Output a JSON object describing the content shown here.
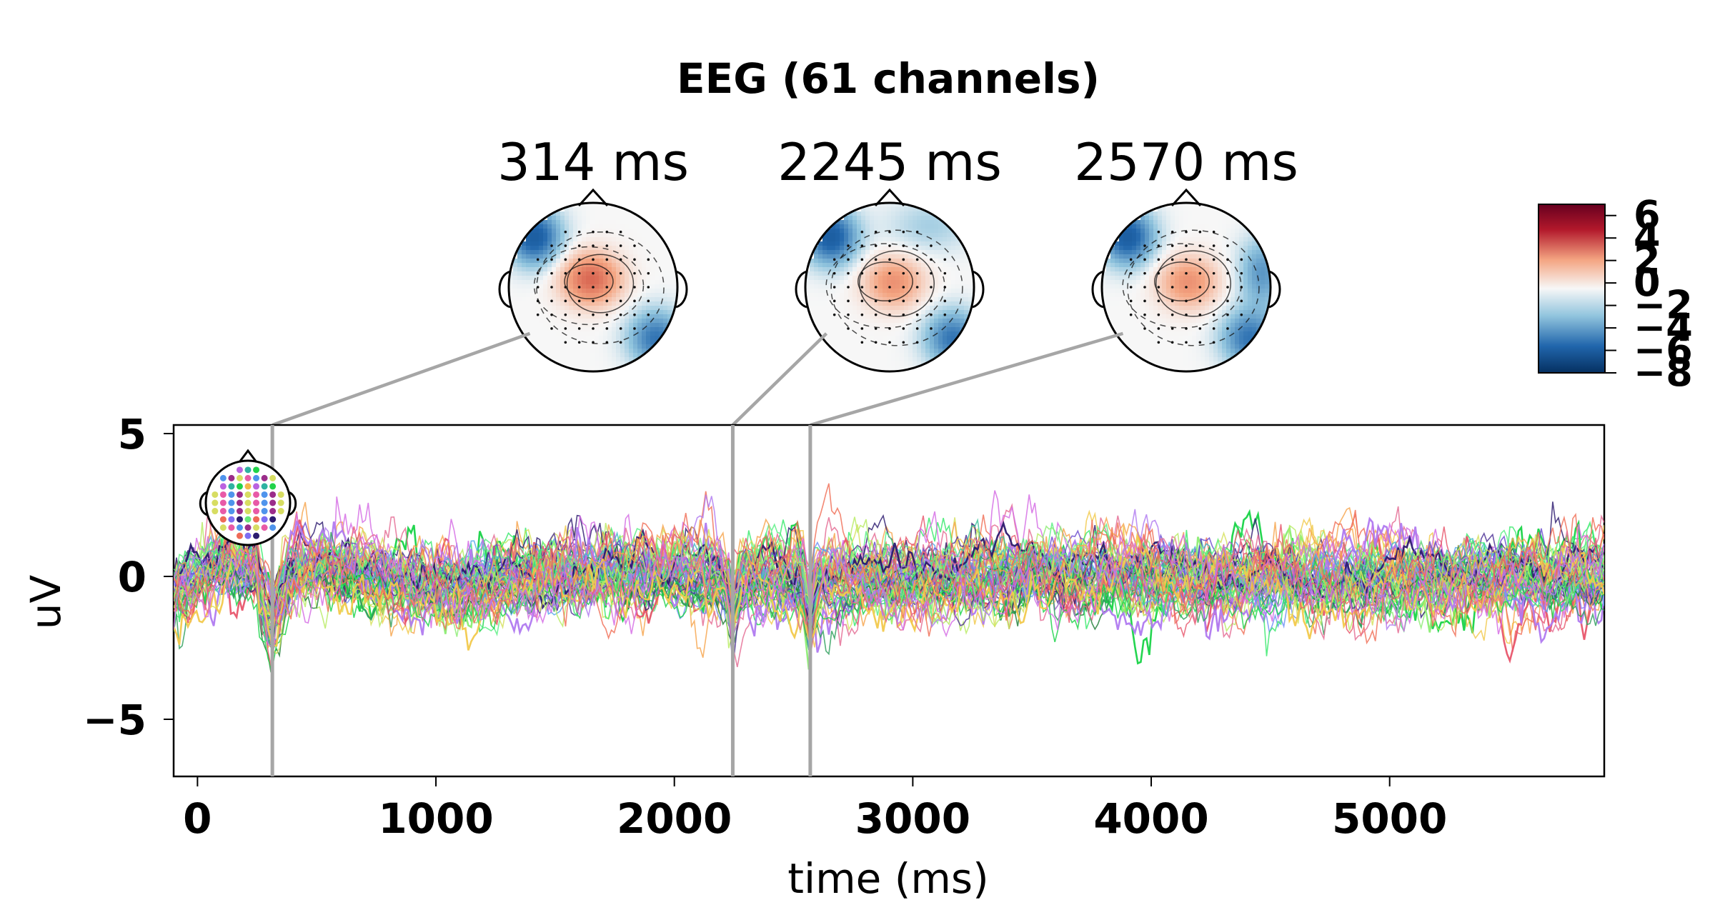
{
  "figure": {
    "title": "EEG (61 channels)"
  },
  "colors": {
    "background": "#ffffff",
    "axis": "#000000",
    "marker_line": "#a6a6a6",
    "topo_neg": "#2f6fb2",
    "topo_pos": "#d55f42",
    "topo_white": "#f7f7f7"
  },
  "chart_data": {
    "type": "line",
    "title": "EEG (61 channels)",
    "xlabel": "time (ms)",
    "ylabel": "uV",
    "xlim": [
      -100,
      5900
    ],
    "ylim": [
      -7,
      5.3
    ],
    "xticks": [
      0,
      1000,
      2000,
      3000,
      4000,
      5000
    ],
    "yticks": [
      -5,
      0,
      5
    ],
    "grid": false,
    "legend": "none",
    "channel_count": 61,
    "series_colors": [
      "#18d347",
      "#37e96b",
      "#59ef83",
      "#8ced74",
      "#b8ec63",
      "#d6e15b",
      "#f2c94c",
      "#f7a34a",
      "#f06e55",
      "#e8556b",
      "#e46a92",
      "#d46ae4",
      "#b07af0",
      "#8a77f5",
      "#6d8ff5",
      "#52a7ec",
      "#42b8c6",
      "#3ac39b",
      "#2d9f5b",
      "#1c7d35",
      "#4c2f95",
      "#2c1a6f",
      "#6a4bcf",
      "#9a5ec8"
    ],
    "highlight_times": [
      314,
      2245,
      2570
    ],
    "topomaps": [
      {
        "time": 314,
        "label": "314 ms"
      },
      {
        "time": 2245,
        "label": "2245 ms"
      },
      {
        "time": 2570,
        "label": "2570 ms"
      }
    ],
    "colorbar": {
      "range": [
        -8,
        7
      ],
      "ticks": [
        6,
        4,
        2,
        0,
        -2,
        -4,
        -6,
        -8
      ]
    }
  }
}
